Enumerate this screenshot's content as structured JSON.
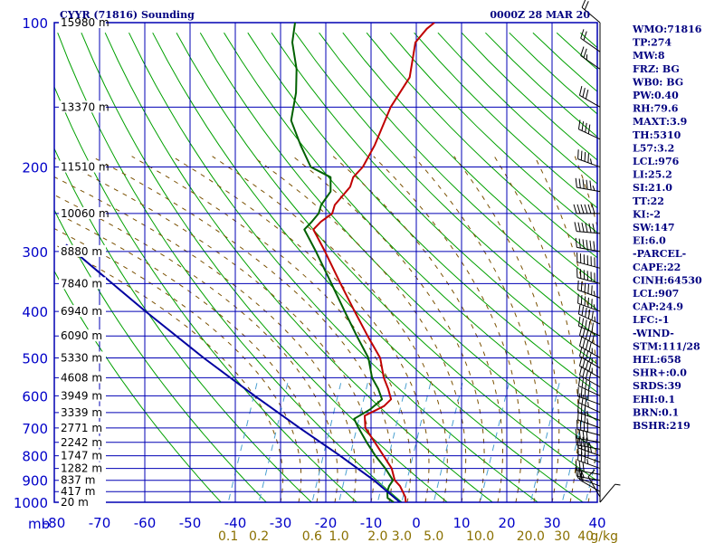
{
  "header": {
    "station": "CYYR (71816) Sounding",
    "datetime": "0000Z 28 MAR 20"
  },
  "chart_data": {
    "type": "line",
    "title": "CYYR (71816) Sounding",
    "subtitle": "0000Z 28 MAR 20",
    "xlabel": "",
    "ylabel": "mb",
    "xlim": [
      -80,
      0
    ],
    "ylim": [
      1000,
      100
    ],
    "y_scale": "log",
    "grid": true,
    "pressure_ticks": [
      100,
      200,
      300,
      400,
      500,
      600,
      700,
      800,
      900,
      1000
    ],
    "temperature_ticks": [
      -80,
      -70,
      -60,
      -50,
      -40,
      -30,
      -20,
      -10,
      0,
      10,
      20,
      30,
      40
    ],
    "temperature_tick_labels": [
      "-80",
      "-70",
      "-60",
      "-50",
      "-40",
      "-30",
      "-20",
      "-10",
      "0",
      "10",
      "20",
      "30",
      "40"
    ],
    "axis_unit_label": "mb",
    "height_labels": [
      {
        "p": 100,
        "text": "15980 m"
      },
      {
        "p": 150,
        "text": "13370 m"
      },
      {
        "p": 200,
        "text": "11510 m"
      },
      {
        "p": 250,
        "text": "10060 m"
      },
      {
        "p": 300,
        "text": "8880 m"
      },
      {
        "p": 350,
        "text": "7840 m"
      },
      {
        "p": 400,
        "text": "6940 m"
      },
      {
        "p": 450,
        "text": "6090 m"
      },
      {
        "p": 500,
        "text": "5330 m"
      },
      {
        "p": 550,
        "text": "4608 m"
      },
      {
        "p": 600,
        "text": "3949 m"
      },
      {
        "p": 650,
        "text": "3339 m"
      },
      {
        "p": 700,
        "text": "2771 m"
      },
      {
        "p": 750,
        "text": "2242 m"
      },
      {
        "p": 800,
        "text": "1747 m"
      },
      {
        "p": 850,
        "text": "1282 m"
      },
      {
        "p": 900,
        "text": "837 m"
      },
      {
        "p": 950,
        "text": "417 m"
      },
      {
        "p": 1000,
        "text": "20 m"
      }
    ],
    "mixing_ratio_ticks": [
      {
        "value": 0.1,
        "text": "0.1"
      },
      {
        "value": 0.2,
        "text": "0.2"
      },
      {
        "value": 0.6,
        "text": "0.6"
      },
      {
        "value": 1.0,
        "text": "1.0"
      },
      {
        "value": 2.0,
        "text": "2.0"
      },
      {
        "value": 3.0,
        "text": "3.0"
      },
      {
        "value": 5.0,
        "text": "5.0"
      },
      {
        "value": 10.0,
        "text": "10.0"
      },
      {
        "value": 20.0,
        "text": "20.0"
      },
      {
        "value": 30.0,
        "text": "30"
      },
      {
        "value": 40.0,
        "text": "40"
      }
    ],
    "mixing_ratio_unit": "g/kg",
    "series": [
      {
        "color": "#c00000",
        "points": [
          {
            "p": 1012,
            "t": -2.0
          },
          {
            "p": 975,
            "t": -3.0
          },
          {
            "p": 925,
            "t": -5.4
          },
          {
            "p": 900,
            "t": -7.2
          },
          {
            "p": 850,
            "t": -9.2
          },
          {
            "p": 800,
            "t": -12.4
          },
          {
            "p": 750,
            "t": -15.8
          },
          {
            "p": 700,
            "t": -19.5
          },
          {
            "p": 660,
            "t": -21.0
          },
          {
            "p": 630,
            "t": -17.8
          },
          {
            "p": 610,
            "t": -17.0
          },
          {
            "p": 580,
            "t": -18.8
          },
          {
            "p": 550,
            "t": -21.0
          },
          {
            "p": 500,
            "t": -24.0
          },
          {
            "p": 450,
            "t": -29.2
          },
          {
            "p": 400,
            "t": -34.8
          },
          {
            "p": 350,
            "t": -41.0
          },
          {
            "p": 300,
            "t": -48.0
          },
          {
            "p": 270,
            "t": -53.0
          },
          {
            "p": 260,
            "t": -52.2
          },
          {
            "p": 250,
            "t": -50.6
          },
          {
            "p": 240,
            "t": -51.0
          },
          {
            "p": 220,
            "t": -49.6
          },
          {
            "p": 210,
            "t": -50.0
          },
          {
            "p": 200,
            "t": -49.0
          },
          {
            "p": 180,
            "t": -48.8
          },
          {
            "p": 150,
            "t": -49.5
          },
          {
            "p": 130,
            "t": -48.6
          },
          {
            "p": 110,
            "t": -51.2
          },
          {
            "p": 103,
            "t": -50.2
          },
          {
            "p": 100,
            "t": -49.2
          }
        ]
      },
      {
        "color": "#006000",
        "points": [
          {
            "p": 1000,
            "t": -5.0
          },
          {
            "p": 980,
            "t": -6.8
          },
          {
            "p": 950,
            "t": -7.6
          },
          {
            "p": 925,
            "t": -7.8
          },
          {
            "p": 900,
            "t": -7.6
          },
          {
            "p": 850,
            "t": -10.6
          },
          {
            "p": 800,
            "t": -14.2
          },
          {
            "p": 750,
            "t": -17.6
          },
          {
            "p": 700,
            "t": -21.0
          },
          {
            "p": 670,
            "t": -23.0
          },
          {
            "p": 640,
            "t": -20.5
          },
          {
            "p": 610,
            "t": -19.0
          },
          {
            "p": 580,
            "t": -21.0
          },
          {
            "p": 550,
            "t": -23.6
          },
          {
            "p": 500,
            "t": -26.6
          },
          {
            "p": 450,
            "t": -31.6
          },
          {
            "p": 400,
            "t": -37.0
          },
          {
            "p": 350,
            "t": -43.0
          },
          {
            "p": 300,
            "t": -50.0
          },
          {
            "p": 270,
            "t": -55.0
          },
          {
            "p": 260,
            "t": -54.2
          },
          {
            "p": 250,
            "t": -53.6
          },
          {
            "p": 240,
            "t": -54.0
          },
          {
            "p": 225,
            "t": -53.4
          },
          {
            "p": 210,
            "t": -55.0
          },
          {
            "p": 200,
            "t": -60.5
          },
          {
            "p": 180,
            "t": -65.2
          },
          {
            "p": 160,
            "t": -70.0
          },
          {
            "p": 140,
            "t": -72.0
          },
          {
            "p": 125,
            "t": -74.5
          },
          {
            "p": 110,
            "t": -78.4
          },
          {
            "p": 100,
            "t": -80.0
          }
        ]
      },
      {
        "color": "#0000a0",
        "points": [
          {
            "p": 1000,
            "t": -3.6
          },
          {
            "p": 900,
            "t": -11.8
          },
          {
            "p": 800,
            "t": -22.0
          },
          {
            "p": 700,
            "t": -34.0
          },
          {
            "p": 600,
            "t": -47.5
          },
          {
            "p": 500,
            "t": -63.0
          },
          {
            "p": 400,
            "t": -81.0
          },
          {
            "p": 330,
            "t": -96.0
          },
          {
            "p": 290,
            "t": -106.0
          }
        ]
      }
    ],
    "wind_barbs": [
      {
        "p": 1000,
        "dir": 40,
        "spd": 5
      },
      {
        "p": 975,
        "dir": 330,
        "spd": 10
      },
      {
        "p": 950,
        "dir": 300,
        "spd": 15
      },
      {
        "p": 925,
        "dir": 290,
        "spd": 20
      },
      {
        "p": 900,
        "dir": 280,
        "spd": 25
      },
      {
        "p": 875,
        "dir": 280,
        "spd": 30
      },
      {
        "p": 850,
        "dir": 290,
        "spd": 35
      },
      {
        "p": 825,
        "dir": 290,
        "spd": 40
      },
      {
        "p": 800,
        "dir": 290,
        "spd": 45
      },
      {
        "p": 775,
        "dir": 280,
        "spd": 45
      },
      {
        "p": 750,
        "dir": 280,
        "spd": 40
      },
      {
        "p": 725,
        "dir": 285,
        "spd": 40
      },
      {
        "p": 700,
        "dir": 290,
        "spd": 35
      },
      {
        "p": 675,
        "dir": 290,
        "spd": 35
      },
      {
        "p": 650,
        "dir": 295,
        "spd": 35
      },
      {
        "p": 625,
        "dir": 290,
        "spd": 40
      },
      {
        "p": 600,
        "dir": 295,
        "spd": 40
      },
      {
        "p": 575,
        "dir": 300,
        "spd": 40
      },
      {
        "p": 550,
        "dir": 300,
        "spd": 45
      },
      {
        "p": 525,
        "dir": 300,
        "spd": 45
      },
      {
        "p": 500,
        "dir": 300,
        "spd": 45
      },
      {
        "p": 475,
        "dir": 300,
        "spd": 50
      },
      {
        "p": 450,
        "dir": 295,
        "spd": 50
      },
      {
        "p": 425,
        "dir": 295,
        "spd": 55
      },
      {
        "p": 400,
        "dir": 290,
        "spd": 55
      },
      {
        "p": 375,
        "dir": 290,
        "spd": 55
      },
      {
        "p": 350,
        "dir": 285,
        "spd": 60
      },
      {
        "p": 325,
        "dir": 285,
        "spd": 60
      },
      {
        "p": 300,
        "dir": 280,
        "spd": 60
      },
      {
        "p": 275,
        "dir": 275,
        "spd": 65
      },
      {
        "p": 250,
        "dir": 270,
        "spd": 65
      },
      {
        "p": 225,
        "dir": 280,
        "spd": 55
      },
      {
        "p": 200,
        "dir": 290,
        "spd": 45
      },
      {
        "p": 175,
        "dir": 295,
        "spd": 40
      },
      {
        "p": 150,
        "dir": 300,
        "spd": 30
      },
      {
        "p": 125,
        "dir": 305,
        "spd": 25
      },
      {
        "p": 115,
        "dir": 305,
        "spd": 20
      },
      {
        "p": 100,
        "dir": 310,
        "spd": 20
      }
    ]
  },
  "indices": [
    "WMO:71816",
    "TP:274",
    "MW:8",
    "FRZ: BG",
    "WB0: BG",
    "PW:0.40",
    "RH:79.6",
    "MAXT:3.9",
    "TH:5310",
    "L57:3.2",
    "LCL:976",
    "LI:25.2",
    "SI:21.0",
    "TT:22",
    "KI:-2",
    "SW:147",
    "EI:6.0",
    "-PARCEL-",
    "CAPE:22",
    "CINH:64530",
    "LCL:907",
    "CAP:24.9",
    "LFC:-1",
    "-WIND-",
    "STM:111/28",
    "HEL:658",
    "SHR+:0.0",
    "SRDS:39",
    "EHI:0.1",
    "BRN:0.1",
    "BSHR:219"
  ],
  "colors": {
    "grid": "#0000b4",
    "dry_adiabat": "#00a000",
    "moist_adiabat": "#7a5000",
    "mixing_ratio": "#4aa0d0",
    "text": "#000080"
  }
}
